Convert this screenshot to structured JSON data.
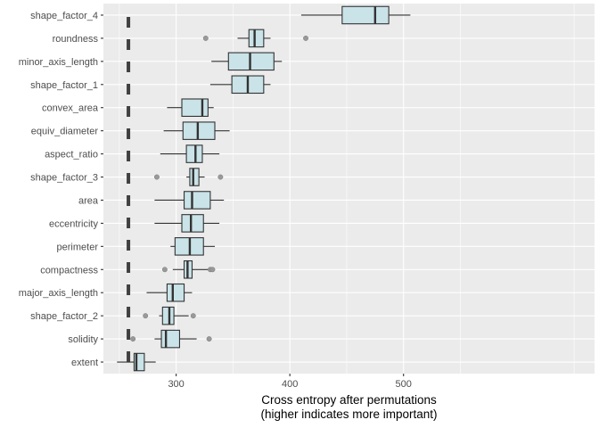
{
  "chart_data": {
    "type": "boxplot",
    "xlabel": [
      "Cross entropy after permutations",
      "(higher indicates more important)"
    ],
    "ylabel": "",
    "xlim": [
      236,
      668
    ],
    "xticks": [
      300,
      400,
      500
    ],
    "grid": true,
    "reference_line": {
      "value": 258,
      "style": "dashed"
    },
    "colors": {
      "panel": "#ebebeb",
      "grid": "#ffffff",
      "box_fill": "#c9e3e8",
      "box_stroke": "#333333",
      "outlier": "#999999",
      "ref_line": "#404040"
    },
    "features": [
      {
        "name": "shape_factor_4",
        "min": 410,
        "q1": 446,
        "median": 475,
        "q3": 487,
        "max": 506,
        "outliers": []
      },
      {
        "name": "roundness",
        "min": 354,
        "q1": 364,
        "median": 369,
        "q3": 377,
        "max": 383,
        "outliers": [
          326,
          414
        ]
      },
      {
        "name": "minor_axis_length",
        "min": 331,
        "q1": 346,
        "median": 365,
        "q3": 386,
        "max": 393,
        "outliers": []
      },
      {
        "name": "shape_factor_1",
        "min": 330,
        "q1": 349,
        "median": 363,
        "q3": 377,
        "max": 383,
        "outliers": []
      },
      {
        "name": "convex_area",
        "min": 292,
        "q1": 305,
        "median": 323,
        "q3": 328,
        "max": 333,
        "outliers": []
      },
      {
        "name": "equiv_diameter",
        "min": 289,
        "q1": 306,
        "median": 319,
        "q3": 334,
        "max": 347,
        "outliers": []
      },
      {
        "name": "aspect_ratio",
        "min": 286,
        "q1": 309,
        "median": 317,
        "q3": 323,
        "max": 338,
        "outliers": []
      },
      {
        "name": "shape_factor_3",
        "min": 309,
        "q1": 312,
        "median": 315,
        "q3": 320,
        "max": 325,
        "outliers": [
          283,
          339
        ]
      },
      {
        "name": "area",
        "min": 281,
        "q1": 307,
        "median": 314,
        "q3": 330,
        "max": 342,
        "outliers": []
      },
      {
        "name": "eccentricity",
        "min": 281,
        "q1": 305,
        "median": 313,
        "q3": 324,
        "max": 338,
        "outliers": []
      },
      {
        "name": "perimeter",
        "min": 295,
        "q1": 299,
        "median": 312,
        "q3": 324,
        "max": 334,
        "outliers": []
      },
      {
        "name": "compactness",
        "min": 297,
        "q1": 307,
        "median": 310,
        "q3": 314,
        "max": 328,
        "outliers": [
          290,
          330,
          332
        ]
      },
      {
        "name": "major_axis_length",
        "min": 274,
        "q1": 292,
        "median": 297,
        "q3": 307,
        "max": 314,
        "outliers": []
      },
      {
        "name": "shape_factor_2",
        "min": 285,
        "q1": 288,
        "median": 294,
        "q3": 298,
        "max": 311,
        "outliers": [
          273,
          315
        ]
      },
      {
        "name": "solidity",
        "min": 281,
        "q1": 287,
        "median": 291,
        "q3": 303,
        "max": 318,
        "outliers": [
          262,
          329
        ]
      },
      {
        "name": "extent",
        "min": 248,
        "q1": 263,
        "median": 265,
        "q3": 272,
        "max": 282,
        "outliers": []
      }
    ]
  }
}
